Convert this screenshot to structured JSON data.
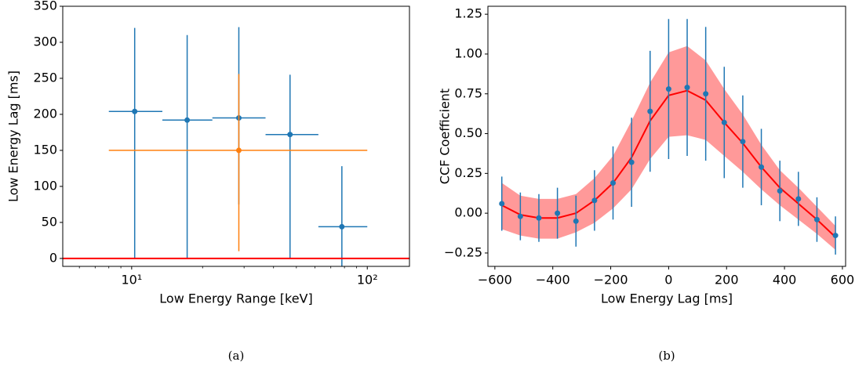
{
  "chart_data": [
    {
      "type": "scatter",
      "caption": "(a)",
      "xlabel": "Low Energy Range [keV]",
      "ylabel": "Low Energy Lag [ms]",
      "xscale": "log",
      "xlim": [
        5.1,
        151
      ],
      "ylim": [
        -11,
        350
      ],
      "xticks": [
        {
          "value": 10,
          "label": "10¹"
        },
        {
          "value": 100,
          "label": "10²"
        }
      ],
      "xminorticks": [
        6,
        7,
        8,
        9,
        20,
        30,
        40,
        50,
        60,
        70,
        80,
        90
      ],
      "yticks": [
        0,
        50,
        100,
        150,
        200,
        250,
        300,
        350
      ],
      "series": [
        {
          "color": "#1f77b4",
          "x": [
            10.3,
            17.2,
            28.5,
            47,
            78
          ],
          "values": [
            204,
            192,
            195,
            172,
            44
          ],
          "xmin": [
            8,
            13.5,
            22,
            37,
            62
          ],
          "xmax": [
            13.5,
            22,
            37,
            62,
            100
          ],
          "ymin": [
            0,
            0,
            75,
            0,
            -40
          ],
          "ymax": [
            320,
            310,
            321,
            255,
            128
          ]
        },
        {
          "color": "#ff7f0e",
          "x": [
            28.5
          ],
          "values": [
            150
          ],
          "xmin": [
            8
          ],
          "xmax": [
            100
          ],
          "ymin": [
            10
          ],
          "ymax": [
            256
          ]
        }
      ],
      "hlines": [
        {
          "value": 0,
          "color": "#ff0000"
        }
      ]
    },
    {
      "type": "line",
      "caption": "(b)",
      "xlabel": "Low Energy Lag [ms]",
      "ylabel": "CCF Coefficient",
      "xlim": [
        -624,
        611
      ],
      "ylim": [
        -0.334,
        1.3
      ],
      "xticks": [
        {
          "value": -600,
          "label": "−600"
        },
        {
          "value": -400,
          "label": "−400"
        },
        {
          "value": -200,
          "label": "−200"
        },
        0,
        200,
        400,
        600
      ],
      "yticks": [
        {
          "value": -0.25,
          "label": "−0.25"
        },
        {
          "value": 0,
          "label": "0.00"
        },
        {
          "value": 0.25,
          "label": "0.25"
        },
        {
          "value": 0.5,
          "label": "0.50"
        },
        {
          "value": 0.75,
          "label": "0.75"
        },
        {
          "value": 1,
          "label": "1.00"
        },
        {
          "value": 1.25,
          "label": "1.25"
        }
      ],
      "x": [
        -576,
        -512,
        -448,
        -384,
        -320,
        -256,
        -192,
        -128,
        -64,
        0,
        64,
        128,
        192,
        256,
        320,
        384,
        448,
        512,
        576
      ],
      "band": {
        "color": "#ff9999",
        "low": [
          -0.1,
          -0.14,
          -0.16,
          -0.16,
          -0.12,
          -0.06,
          0.03,
          0.15,
          0.34,
          0.48,
          0.49,
          0.46,
          0.36,
          0.26,
          0.15,
          0.05,
          -0.04,
          -0.13,
          -0.23
        ],
        "high": [
          0.19,
          0.11,
          0.09,
          0.09,
          0.12,
          0.22,
          0.36,
          0.58,
          0.82,
          1.01,
          1.05,
          0.96,
          0.78,
          0.62,
          0.43,
          0.27,
          0.16,
          0.04,
          -0.08
        ]
      },
      "line": {
        "color": "#ff0000",
        "values": [
          0.05,
          -0.01,
          -0.03,
          -0.03,
          0.0,
          0.08,
          0.19,
          0.35,
          0.58,
          0.74,
          0.77,
          0.71,
          0.57,
          0.44,
          0.29,
          0.16,
          0.06,
          -0.04,
          -0.15
        ]
      },
      "points": {
        "color": "#1f77b4",
        "values": [
          0.06,
          -0.02,
          -0.03,
          0.0,
          -0.05,
          0.08,
          0.19,
          0.32,
          0.64,
          0.78,
          0.79,
          0.75,
          0.57,
          0.45,
          0.29,
          0.14,
          0.09,
          -0.04,
          -0.14
        ],
        "errors": [
          0.17,
          0.15,
          0.15,
          0.16,
          0.16,
          0.19,
          0.23,
          0.28,
          0.38,
          0.44,
          0.43,
          0.42,
          0.35,
          0.29,
          0.24,
          0.19,
          0.17,
          0.14,
          0.12
        ]
      }
    }
  ]
}
